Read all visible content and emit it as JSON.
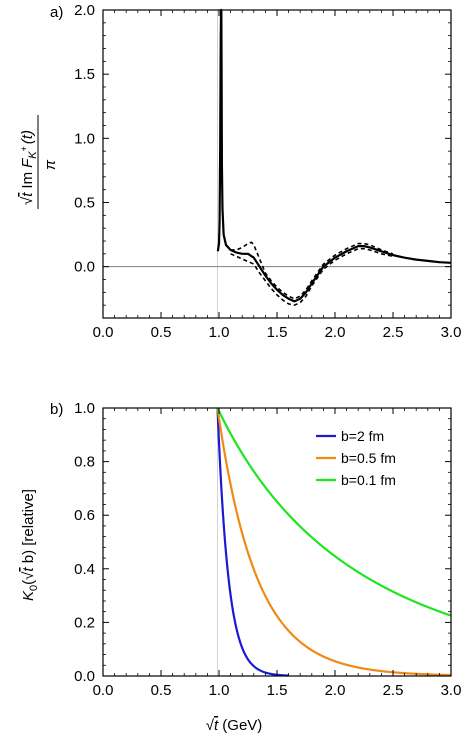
{
  "chart_data": [
    {
      "type": "line",
      "panel_label": "a)",
      "xlim": [
        0,
        3
      ],
      "ylim": [
        -0.4,
        2.0
      ],
      "xticks": [
        "0.0",
        "0.5",
        "1.0",
        "1.5",
        "2.0",
        "2.5",
        "3.0"
      ],
      "yticks": [
        "0.0",
        "0.5",
        "1.0",
        "1.5",
        "2.0"
      ],
      "ylabel_parts": {
        "sqrt": "t",
        "im": "Im",
        "F": "F",
        "sub": "K",
        "sup": "+",
        "arg": "(t)",
        "den": "π"
      },
      "series": [
        {
          "style": "solid",
          "x": [
            0.99,
            1.0,
            1.005,
            1.01,
            1.015,
            1.018,
            1.02,
            1.022,
            1.025,
            1.03,
            1.04,
            1.06,
            1.1,
            1.15,
            1.2,
            1.25,
            1.3,
            1.35,
            1.4,
            1.45,
            1.5,
            1.55,
            1.6,
            1.65,
            1.7,
            1.75,
            1.8,
            1.9,
            2.0,
            2.1,
            2.2,
            2.25,
            2.3,
            2.4,
            2.5,
            2.6,
            2.7,
            2.8,
            2.9,
            3.0
          ],
          "y": [
            0.12,
            0.18,
            0.35,
            0.9,
            1.8,
            2.0,
            2.0,
            1.6,
            0.8,
            0.45,
            0.25,
            0.17,
            0.13,
            0.11,
            0.1,
            0.1,
            0.07,
            0.0,
            -0.07,
            -0.13,
            -0.18,
            -0.22,
            -0.25,
            -0.27,
            -0.25,
            -0.2,
            -0.13,
            0.0,
            0.07,
            0.12,
            0.16,
            0.16,
            0.15,
            0.12,
            0.09,
            0.07,
            0.055,
            0.045,
            0.035,
            0.03
          ]
        },
        {
          "style": "dashed",
          "x": [
            1.1,
            1.15,
            1.2,
            1.25,
            1.28,
            1.3,
            1.35,
            1.4,
            1.45,
            1.5,
            1.55,
            1.6,
            1.65,
            1.7,
            1.75,
            1.8,
            1.9,
            2.0,
            2.1,
            2.2,
            2.25,
            2.3,
            2.4,
            2.5
          ],
          "y": [
            0.13,
            0.13,
            0.15,
            0.18,
            0.19,
            0.17,
            0.06,
            -0.05,
            -0.11,
            -0.16,
            -0.2,
            -0.23,
            -0.25,
            -0.23,
            -0.18,
            -0.11,
            0.02,
            0.09,
            0.14,
            0.18,
            0.18,
            0.17,
            0.13,
            0.1
          ]
        },
        {
          "style": "dashed",
          "x": [
            1.1,
            1.15,
            1.2,
            1.25,
            1.3,
            1.35,
            1.4,
            1.45,
            1.5,
            1.55,
            1.6,
            1.65,
            1.7,
            1.75,
            1.8,
            1.9,
            2.0,
            2.1,
            2.2,
            2.25,
            2.3,
            2.4,
            2.5
          ],
          "y": [
            0.1,
            0.08,
            0.06,
            0.04,
            0.02,
            -0.05,
            -0.11,
            -0.17,
            -0.22,
            -0.26,
            -0.29,
            -0.3,
            -0.28,
            -0.23,
            -0.15,
            -0.02,
            0.05,
            0.1,
            0.14,
            0.14,
            0.13,
            0.1,
            0.08
          ]
        }
      ]
    },
    {
      "type": "line",
      "panel_label": "b)",
      "xlim": [
        0,
        3
      ],
      "ylim": [
        0,
        1.0
      ],
      "xticks": [
        "0.0",
        "0.5",
        "1.0",
        "1.5",
        "2.0",
        "2.5",
        "3.0"
      ],
      "yticks": [
        "0.0",
        "0.2",
        "0.4",
        "0.6",
        "0.8",
        "1.0"
      ],
      "ylabel_parts": {
        "pre": "K",
        "sub": "0",
        "open": "(",
        "sqrt": "t",
        "post": " b) [relative]"
      },
      "xlabel_parts": {
        "sqrt": "t",
        "post": "  (GeV)"
      },
      "threshold_x": 0.987,
      "series": [
        {
          "name": "b=2 fm",
          "color": "#1a1ad6",
          "b_gev_inv": 10.136
        },
        {
          "name": "b=0.5 fm",
          "color": "#f08a14",
          "b_gev_inv": 2.534
        },
        {
          "name": "b=0.1 fm",
          "color": "#1ee61e",
          "b_gev_inv": 0.5068
        }
      ]
    }
  ]
}
